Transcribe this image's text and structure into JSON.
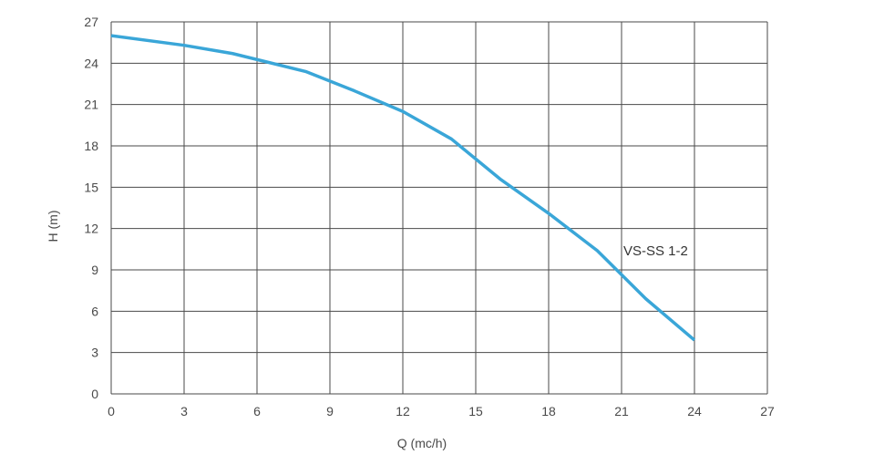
{
  "chart_data": {
    "type": "line",
    "xlabel": "Q (mc/h)",
    "ylabel": "H (m)",
    "xlim": [
      0,
      27
    ],
    "ylim": [
      0,
      27
    ],
    "xticks": [
      0,
      3,
      6,
      9,
      12,
      15,
      18,
      21,
      24,
      27
    ],
    "yticks": [
      0,
      3,
      6,
      9,
      12,
      15,
      18,
      21,
      24,
      27
    ],
    "grid": true,
    "series": [
      {
        "name": "VS-SS 1-2",
        "color": "#3aa6d8",
        "points": [
          {
            "x": 0,
            "y": 26.0
          },
          {
            "x": 3,
            "y": 25.3
          },
          {
            "x": 5,
            "y": 24.7
          },
          {
            "x": 8,
            "y": 23.4
          },
          {
            "x": 10,
            "y": 22.0
          },
          {
            "x": 12,
            "y": 20.5
          },
          {
            "x": 14,
            "y": 18.5
          },
          {
            "x": 16,
            "y": 15.6
          },
          {
            "x": 18,
            "y": 13.1
          },
          {
            "x": 20,
            "y": 10.4
          },
          {
            "x": 22,
            "y": 6.9
          },
          {
            "x": 24,
            "y": 3.9
          }
        ]
      }
    ]
  }
}
